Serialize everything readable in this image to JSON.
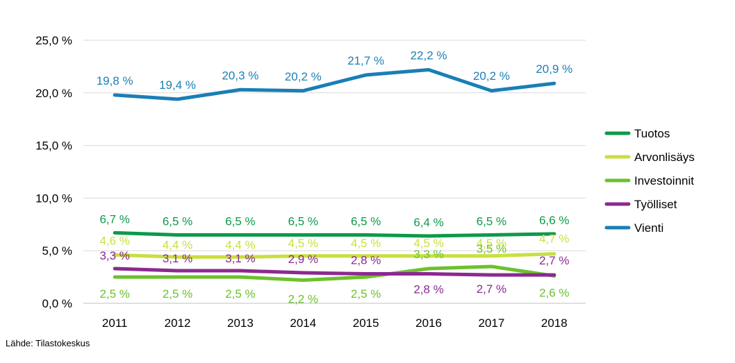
{
  "chart_data": {
    "type": "line",
    "title": "",
    "xlabel": "",
    "ylabel": "",
    "categories": [
      "2011",
      "2012",
      "2013",
      "2014",
      "2015",
      "2016",
      "2017",
      "2018"
    ],
    "ylim": [
      0,
      25
    ],
    "yticks": [
      0,
      5,
      10,
      15,
      20,
      25
    ],
    "ytick_labels": [
      "0,0 %",
      "5,0 %",
      "10,0 %",
      "15,0 %",
      "20,0 %",
      "25,0 %"
    ],
    "grid": true,
    "legend_position": "right",
    "series": [
      {
        "name": "Tuotos",
        "color": "#0d9a48",
        "values": [
          6.7,
          6.5,
          6.5,
          6.5,
          6.5,
          6.4,
          6.5,
          6.6
        ],
        "labels": [
          "6,7 %",
          "6,5 %",
          "6,5 %",
          "6,5 %",
          "6,5 %",
          "6,4 %",
          "6,5 %",
          "6,6 %"
        ]
      },
      {
        "name": "Arvonlisäys",
        "color": "#c9df3f",
        "values": [
          4.6,
          4.4,
          4.4,
          4.5,
          4.5,
          4.5,
          4.5,
          4.7
        ],
        "labels": [
          "4,6 %",
          "4,4 %",
          "4,4 %",
          "4,5 %",
          "4,5 %",
          "4,5 %",
          "4,5 %",
          "4,7 %"
        ]
      },
      {
        "name": "Investoinnit",
        "color": "#6cc12d",
        "values": [
          2.5,
          2.5,
          2.5,
          2.2,
          2.5,
          3.3,
          3.5,
          2.6
        ],
        "labels": [
          "2,5 %",
          "2,5 %",
          "2,5 %",
          "2,2 %",
          "2,5 %",
          "3,3 %",
          "3,5 %",
          "2,6 %"
        ]
      },
      {
        "name": "Työlliset",
        "color": "#8b2a8f",
        "values": [
          3.3,
          3.1,
          3.1,
          2.9,
          2.8,
          2.8,
          2.7,
          2.7
        ],
        "labels": [
          "3,3 %",
          "3,1 %",
          "3,1 %",
          "2,9 %",
          "2,8 %",
          "2,8 %",
          "2,7 %",
          "2,7 %"
        ]
      },
      {
        "name": "Vienti",
        "color": "#1a7fb5",
        "values": [
          19.8,
          19.4,
          20.3,
          20.2,
          21.7,
          22.2,
          20.2,
          20.9
        ],
        "labels": [
          "19,8 %",
          "19,4 %",
          "20,3 %",
          "20,2 %",
          "21,7 %",
          "22,2 %",
          "20,2 %",
          "20,9 %"
        ]
      }
    ]
  },
  "source": "Lähde: Tilastokeskus"
}
